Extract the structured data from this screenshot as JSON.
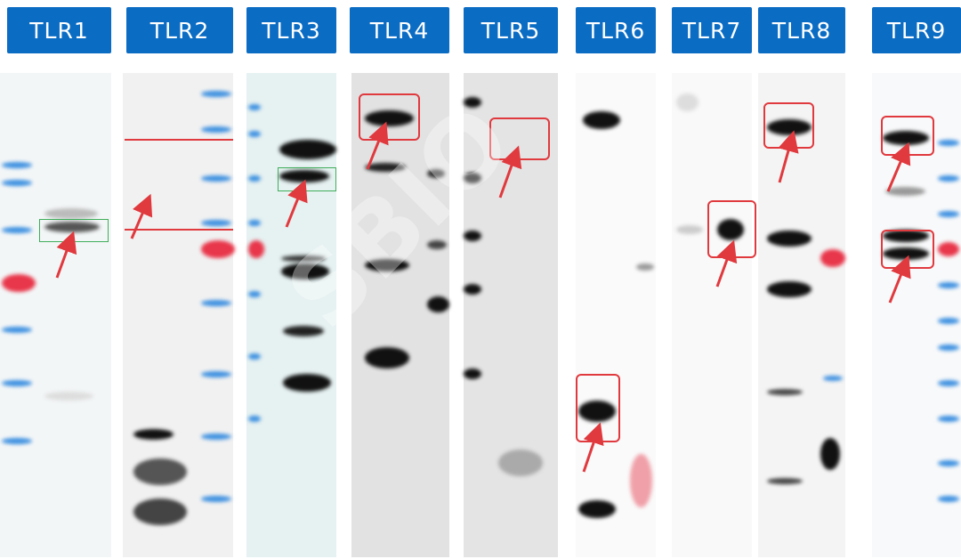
{
  "labels": [
    "TLR1",
    "TLR2",
    "TLR3",
    "TLR4",
    "TLR5",
    "TLR6",
    "TLR7",
    "TLR8",
    "TLR9"
  ],
  "watermark": "SBIO",
  "colors": {
    "label_bg": "#0b6cc4",
    "highlight_box": "#e0393e",
    "target_box_green": "#3fae5a",
    "ladder_blue": "#3b8fe0",
    "ladder_red": "#e8364a"
  }
}
